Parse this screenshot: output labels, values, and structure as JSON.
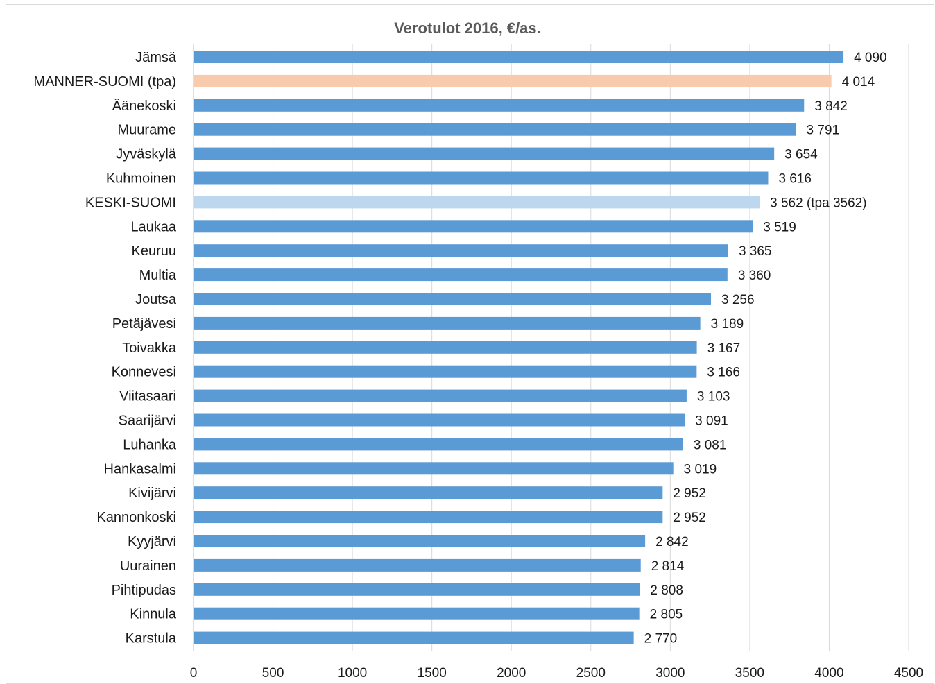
{
  "chart_data": {
    "type": "bar",
    "orientation": "horizontal",
    "title": "Verotulot 2016, €/as.",
    "xlabel": "",
    "ylabel": "",
    "xlim": [
      0,
      4500
    ],
    "xticks": [
      0,
      500,
      1000,
      1500,
      2000,
      2500,
      3000,
      3500,
      4000,
      4500
    ],
    "grid": "vertical gridlines on",
    "legend": "none",
    "colors": {
      "default": "#5b9bd5",
      "highlight_national": "#f8cbad",
      "highlight_region": "#bdd7ee"
    },
    "categories": [
      "Jämsä",
      "MANNER-SUOMI (tpa)",
      "Äänekoski",
      "Muurame",
      "Jyväskylä",
      "Kuhmoinen",
      "KESKI-SUOMI",
      "Laukaa",
      "Keuruu",
      "Multia",
      "Joutsa",
      "Petäjävesi",
      "Toivakka",
      "Konnevesi",
      "Viitasaari",
      "Saarijärvi",
      "Luhanka",
      "Hankasalmi",
      "Kivijärvi",
      "Kannonkoski",
      "Kyyjärvi",
      "Uurainen",
      "Pihtipudas",
      "Kinnula",
      "Karstula"
    ],
    "values": [
      4090,
      4014,
      3842,
      3791,
      3654,
      3616,
      3562,
      3519,
      3365,
      3360,
      3256,
      3189,
      3167,
      3166,
      3103,
      3091,
      3081,
      3019,
      2952,
      2952,
      2842,
      2814,
      2808,
      2805,
      2770
    ],
    "data_labels": [
      "4 090",
      "4 014",
      "3 842",
      "3 791",
      "3 654",
      "3 616",
      "3 562 (tpa 3562)",
      "3 519",
      "3 365",
      "3 360",
      "3 256",
      "3 189",
      "3 167",
      "3 166",
      "3 103",
      "3 091",
      "3 081",
      "3 019",
      "2 952",
      "2 952",
      "2 842",
      "2 814",
      "2 808",
      "2 805",
      "2 770"
    ],
    "bar_color_keys": [
      "default",
      "highlight_national",
      "default",
      "default",
      "default",
      "default",
      "highlight_region",
      "default",
      "default",
      "default",
      "default",
      "default",
      "default",
      "default",
      "default",
      "default",
      "default",
      "default",
      "default",
      "default",
      "default",
      "default",
      "default",
      "default",
      "default"
    ]
  }
}
